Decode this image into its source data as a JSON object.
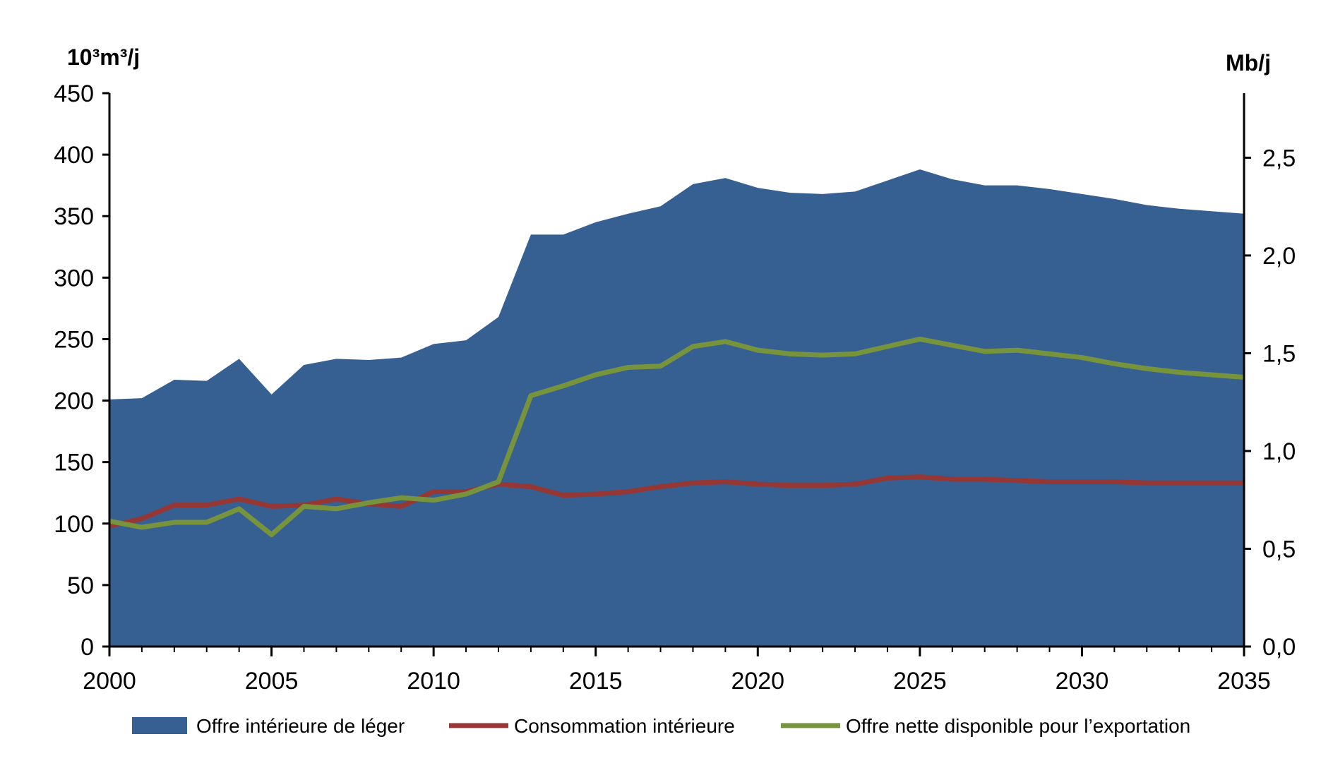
{
  "chart_data": {
    "type": "area",
    "left_axis_unit": "10³m³/j",
    "right_axis_unit": "Mb/j",
    "x_ticks": [
      "2000",
      "2005",
      "2010",
      "2015",
      "2020",
      "2025",
      "2030",
      "2035"
    ],
    "y_left_ticks": [
      "0",
      "50",
      "100",
      "150",
      "200",
      "250",
      "300",
      "350",
      "400",
      "450"
    ],
    "y_right_ticks": [
      "0,0",
      "0,5",
      "1,0",
      "1,5",
      "2,0",
      "2,5"
    ],
    "ylim_left": [
      0,
      450
    ],
    "ylim_right_mbd": [
      0,
      2.83
    ],
    "xlim": [
      2000,
      2035
    ],
    "x": [
      2000,
      2001,
      2002,
      2003,
      2004,
      2005,
      2006,
      2007,
      2008,
      2009,
      2010,
      2011,
      2012,
      2013,
      2014,
      2015,
      2016,
      2017,
      2018,
      2019,
      2020,
      2021,
      2022,
      2023,
      2024,
      2025,
      2026,
      2027,
      2028,
      2029,
      2030,
      2031,
      2032,
      2033,
      2034,
      2035
    ],
    "series": [
      {
        "name": "Offre intérieure de léger",
        "kind": "area",
        "color": "#376092",
        "values": [
          201,
          202,
          217,
          216,
          234,
          205,
          229,
          234,
          233,
          235,
          246,
          249,
          268,
          335,
          335,
          345,
          352,
          358,
          376,
          381,
          373,
          369,
          368,
          370,
          379,
          388,
          380,
          375,
          375,
          372,
          368,
          364,
          359,
          356,
          354,
          352
        ]
      },
      {
        "name": "Consommation intérieure",
        "kind": "line",
        "color": "#953735",
        "values": [
          98,
          104,
          115,
          115,
          120,
          114,
          115,
          120,
          116,
          114,
          126,
          126,
          132,
          130,
          123,
          124,
          126,
          130,
          133,
          134,
          132,
          131,
          131,
          132,
          137,
          138,
          136,
          136,
          135,
          134,
          134,
          134,
          133,
          133,
          133,
          133
        ]
      },
      {
        "name": "Offre nette disponible pour l’exportation",
        "kind": "line",
        "color": "#77933c",
        "values": [
          102,
          97,
          101,
          101,
          112,
          91,
          114,
          112,
          117,
          121,
          119,
          124,
          134,
          204,
          212,
          221,
          227,
          228,
          244,
          248,
          241,
          238,
          237,
          238,
          244,
          250,
          245,
          240,
          241,
          238,
          235,
          230,
          226,
          223,
          221,
          219
        ]
      }
    ],
    "legend_position": "bottom",
    "grid": false
  }
}
